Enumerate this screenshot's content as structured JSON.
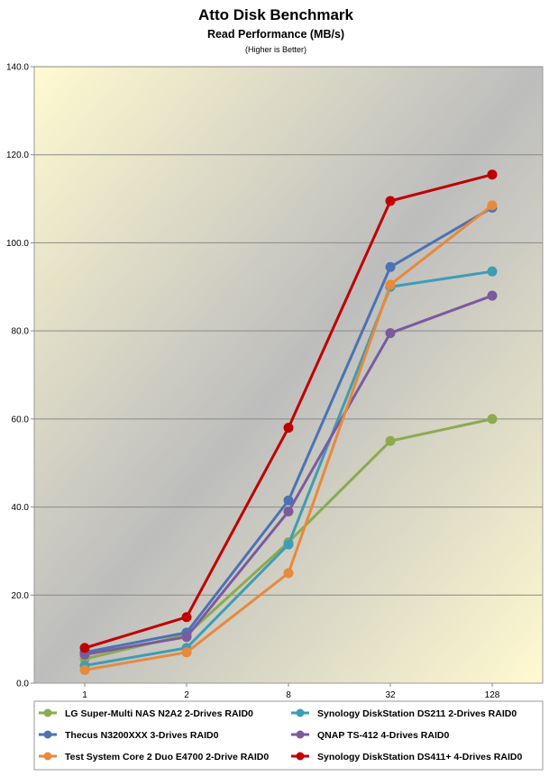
{
  "chart_data": {
    "type": "line",
    "title": "Atto Disk Benchmark",
    "subtitle": "Read Performance (MB/s)",
    "note": "(Higher is Better)",
    "xlabel": "",
    "ylabel": "",
    "categories": [
      "1",
      "2",
      "8",
      "32",
      "128"
    ],
    "ylim": [
      0,
      140
    ],
    "yticks": [
      "0.0",
      "20.0",
      "40.0",
      "60.0",
      "80.0",
      "100.0",
      "120.0",
      "140.0"
    ],
    "ytick_values": [
      0,
      20,
      40,
      60,
      80,
      100,
      120,
      140
    ],
    "grid": true,
    "legend_position": "bottom",
    "series": [
      {
        "name": "LG Super-Multi NAS N2A2 2-Drives RAID0",
        "color": "#8bab4d",
        "values": [
          5.5,
          11,
          32,
          55,
          60
        ]
      },
      {
        "name": "Synology DiskStation DS211 2-Drives RAID0",
        "color": "#3d9db5",
        "values": [
          4,
          8,
          31.5,
          90,
          93.5
        ]
      },
      {
        "name": "Thecus N3200XXX 3-Drives RAID0",
        "color": "#4a73b4",
        "values": [
          7,
          11.5,
          41.5,
          94.5,
          108
        ]
      },
      {
        "name": "QNAP TS-412 4-Drives RAID0",
        "color": "#7b5a9e",
        "values": [
          6.5,
          10.5,
          39,
          79.5,
          88
        ]
      },
      {
        "name": "Test System Core 2 Duo E4700 2-Drive RAID0",
        "color": "#e8893c",
        "values": [
          3,
          7,
          25,
          90.5,
          108.5
        ]
      },
      {
        "name": "Synology DiskStation DS411+ 4-Drives RAID0",
        "color": "#c00000",
        "values": [
          8,
          15,
          58,
          109.5,
          115.5
        ]
      }
    ]
  }
}
